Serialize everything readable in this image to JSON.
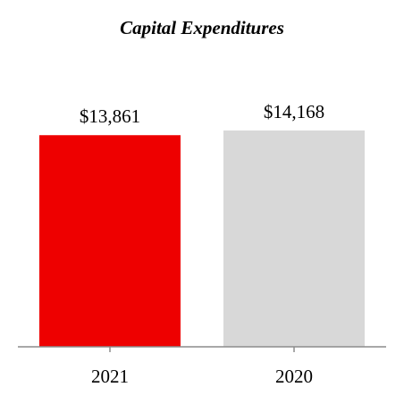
{
  "chart_data": {
    "type": "bar",
    "title": "Capital Expenditures",
    "xlabel": "",
    "ylabel": "",
    "categories": [
      "2021",
      "2020"
    ],
    "values": [
      13861,
      14168
    ],
    "data_labels": [
      "$13,861",
      "$14,168"
    ],
    "colors": [
      "#ee0000",
      "#d8d8d8"
    ],
    "ylim": [
      0,
      14168
    ],
    "grid": false,
    "legend": "none"
  }
}
